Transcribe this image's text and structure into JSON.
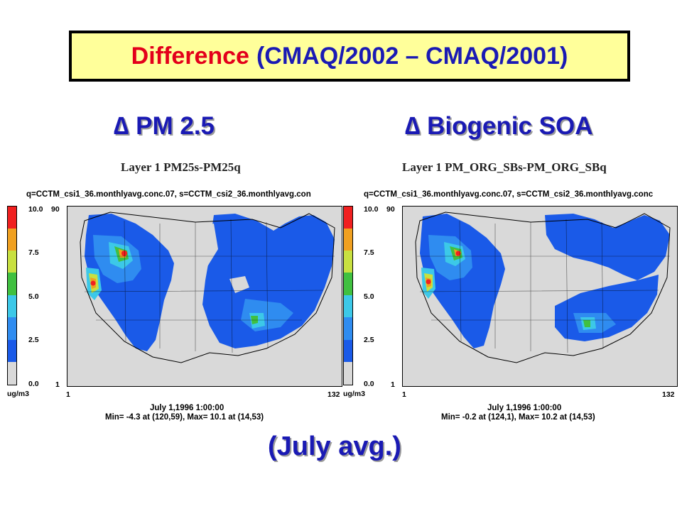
{
  "title": {
    "part1": "Difference",
    "part2": "(CMAQ/2002 – CMAQ/2001)"
  },
  "footer": "(July avg.)",
  "colors": {
    "title_red": "#e3001b",
    "title_blue": "#1a1ab4",
    "title_bg": "#ffff9a"
  },
  "colorbar_colors": [
    "#d9d9d9",
    "#1a5ae8",
    "#2f8cf0",
    "#3cc8e8",
    "#40c040",
    "#c8e040",
    "#f0a020",
    "#f02020"
  ],
  "panels": [
    {
      "heading": "∆ PM 2.5",
      "layer_label": "Layer 1  PM25s-PM25q",
      "file_line": "q=CCTM_csi1_36.monthlyavg.conc.07, s=CCTM_csi2_36.monthlyavg.con",
      "unit": "ug/m3",
      "cbar_ticks": [
        "10.0",
        "7.5",
        "5.0",
        "2.5",
        "0.0"
      ],
      "y_top": "90",
      "y_bottom": "1",
      "x_left": "1",
      "x_right": "132",
      "date": "July 1,1996 1:00:00",
      "minmax": "Min=    -4.3 at (120,59), Max=    10.1 at (14,53)"
    },
    {
      "heading": "∆ Biogenic SOA",
      "layer_label": "Layer 1  PM_ORG_SBs-PM_ORG_SBq",
      "file_line": "q=CCTM_csi1_36.monthlyavg.conc.07, s=CCTM_csi2_36.monthlyavg.conc",
      "unit": "ug/m3",
      "cbar_ticks": [
        "10.0",
        "7.5",
        "5.0",
        "2.5",
        "0.0"
      ],
      "y_top": "90",
      "y_bottom": "1",
      "x_left": "1",
      "x_right": "132",
      "date": "July 1,1996 1:00:00",
      "minmax": "Min=    -0.2 at (124,1), Max=    10.2 at (14,53)"
    }
  ]
}
